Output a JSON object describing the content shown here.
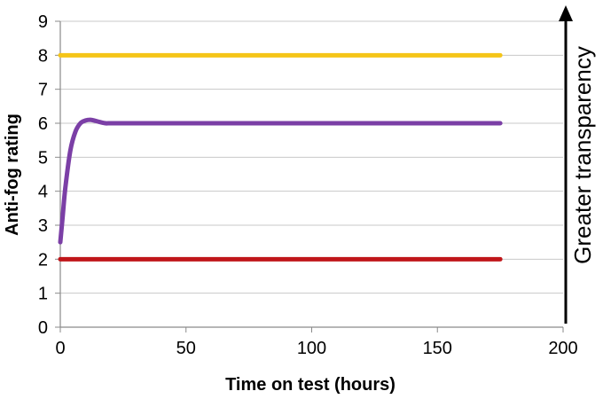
{
  "chart_data": {
    "type": "line",
    "title": "",
    "xlabel": "Time on test (hours)",
    "ylabel": "Anti-fog rating",
    "xlim": [
      0,
      200
    ],
    "ylim": [
      0,
      9
    ],
    "x_ticks": [
      0,
      50,
      100,
      150,
      200
    ],
    "y_ticks": [
      0,
      1,
      2,
      3,
      4,
      5,
      6,
      7,
      8,
      9
    ],
    "grid": "horizontal",
    "annotation": {
      "text": "Greater transparency",
      "arrow_direction": "up"
    },
    "series": [
      {
        "color": "#f5c518",
        "x": [
          0,
          175
        ],
        "y": [
          8,
          8
        ]
      },
      {
        "color": "#7b3fa6",
        "x": [
          0,
          1,
          2,
          4,
          6,
          8,
          10,
          12,
          14,
          16,
          18,
          20,
          25,
          30,
          50,
          100,
          150,
          175
        ],
        "y": [
          2.5,
          3.3,
          4.1,
          5.2,
          5.75,
          6.0,
          6.08,
          6.1,
          6.07,
          6.03,
          6.0,
          6.0,
          6.0,
          6.0,
          6.0,
          6.0,
          6.0,
          6.0
        ]
      },
      {
        "color": "#c0161a",
        "x": [
          0,
          175
        ],
        "y": [
          2,
          2
        ]
      }
    ]
  }
}
